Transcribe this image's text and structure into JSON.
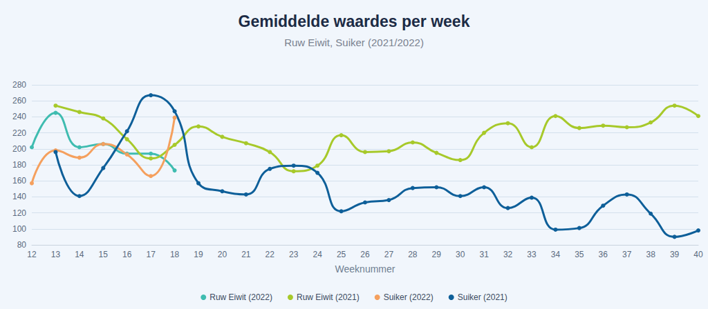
{
  "chart_data": {
    "type": "line",
    "title": "Gemiddelde waardes per week",
    "subtitle": "Ruw Eiwit, Suiker (2021/2022)",
    "x_label": "Weeknummer",
    "x": [
      12,
      13,
      14,
      15,
      16,
      17,
      18,
      19,
      20,
      21,
      22,
      23,
      24,
      25,
      26,
      27,
      28,
      29,
      30,
      31,
      32,
      33,
      34,
      35,
      36,
      37,
      38,
      39,
      40
    ],
    "xlim": [
      12,
      40
    ],
    "xticks": [
      12,
      13,
      14,
      15,
      16,
      17,
      18,
      19,
      20,
      21,
      22,
      23,
      24,
      25,
      26,
      27,
      28,
      29,
      30,
      31,
      32,
      33,
      34,
      35,
      36,
      37,
      38,
      39,
      40
    ],
    "ylim": [
      80,
      280
    ],
    "yticks": [
      80,
      100,
      120,
      140,
      160,
      180,
      200,
      220,
      240,
      260,
      280
    ],
    "grid": true,
    "legend": "bottom",
    "marker": "circle",
    "series": [
      {
        "name": "Ruw Eiwit (2022)",
        "color": "#3fbcb0",
        "values": [
          202,
          245,
          202,
          206,
          194,
          194,
          173,
          null,
          null,
          null,
          null,
          null,
          null,
          null,
          null,
          null,
          null,
          null,
          null,
          null,
          null,
          null,
          null,
          null,
          null,
          null,
          null,
          null,
          null
        ]
      },
      {
        "name": "Ruw Eiwit (2021)",
        "color": "#a7c92a",
        "values": [
          null,
          254,
          246,
          238,
          212,
          188,
          205,
          228,
          215,
          207,
          196,
          172,
          179,
          217,
          196,
          197,
          208,
          195,
          186,
          220,
          232,
          202,
          241,
          226,
          229,
          227,
          233,
          254,
          241
        ]
      },
      {
        "name": "Suiker (2022)",
        "color": "#f5a05e",
        "values": [
          157,
          198,
          189,
          206,
          193,
          166,
          239,
          null,
          null,
          null,
          null,
          null,
          null,
          null,
          null,
          null,
          null,
          null,
          null,
          null,
          null,
          null,
          null,
          null,
          null,
          null,
          null,
          null,
          null
        ]
      },
      {
        "name": "Suiker (2021)",
        "color": "#0e5f99",
        "values": [
          null,
          196,
          141,
          176,
          222,
          267,
          247,
          157,
          147,
          143,
          175,
          179,
          170,
          122,
          133,
          136,
          151,
          152,
          141,
          152,
          126,
          139,
          99,
          101,
          129,
          143,
          119,
          90,
          98
        ]
      }
    ]
  }
}
